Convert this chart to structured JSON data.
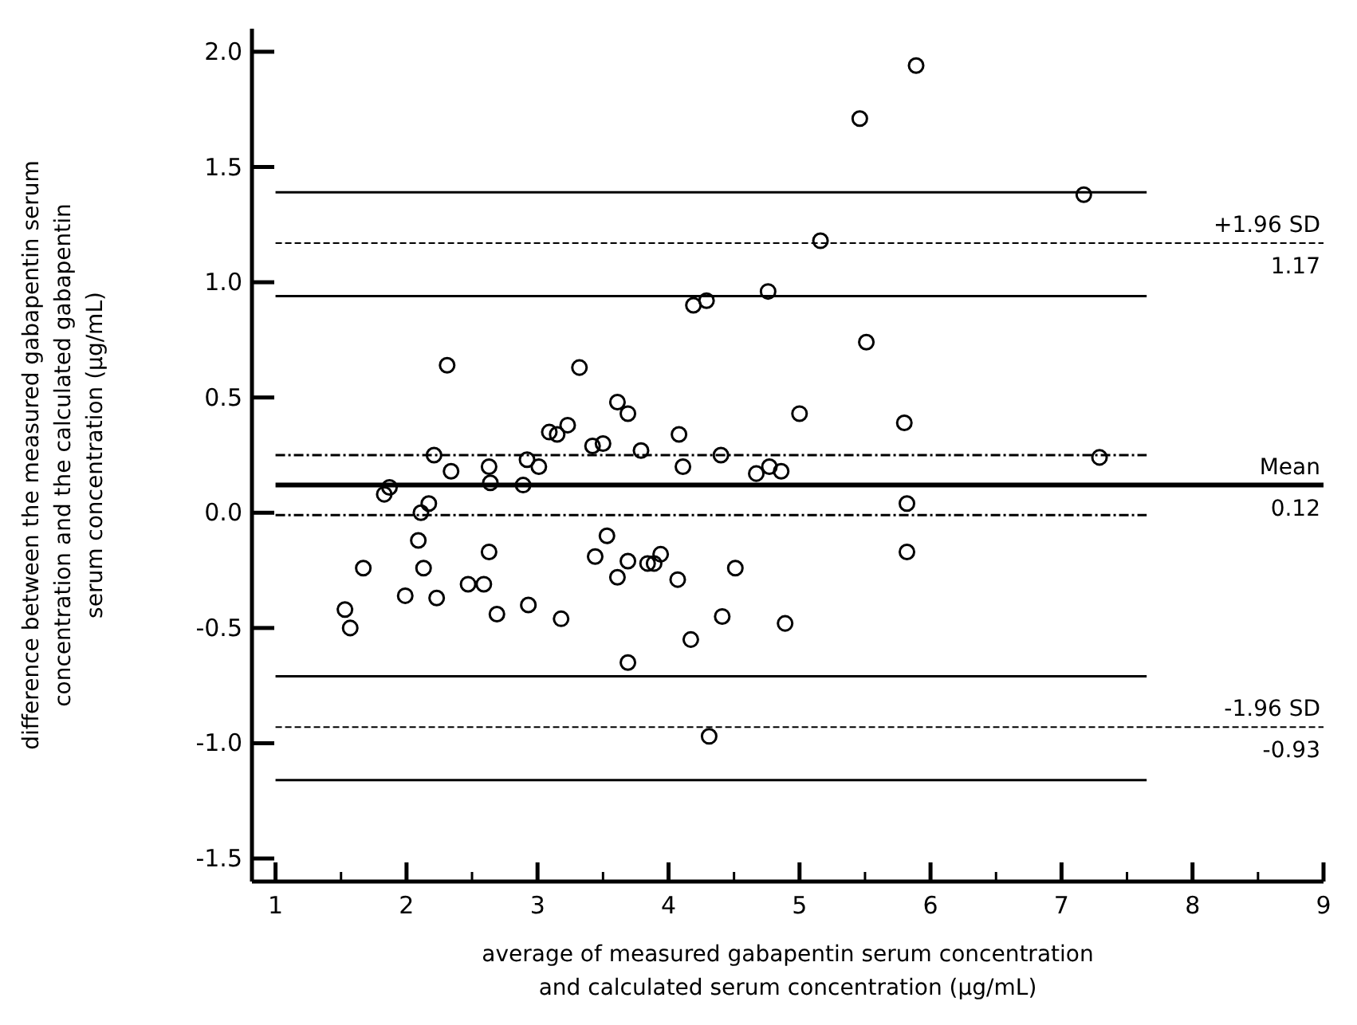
{
  "chart_data": {
    "type": "scatter",
    "xlabel": "average of measured gabapentin serum concentration\nand calculated serum concentration (µg/mL)",
    "ylabel": "difference between the measured gabapentin serum\nconcentration and the calculated gabapentin\nserum concentration (µg/mL)",
    "xlim": [
      0.82,
      9
    ],
    "ylim": [
      -1.6,
      2.1
    ],
    "xticks": [
      1,
      {
        "value": 1.5,
        "label": null
      },
      2,
      {
        "value": 2.5,
        "label": null
      },
      3,
      {
        "value": 3.5,
        "label": null
      },
      4,
      {
        "value": 4.5,
        "label": null
      },
      5,
      {
        "value": 5.5,
        "label": null
      },
      6,
      {
        "value": 6.5,
        "label": null
      },
      7,
      {
        "value": 7.5,
        "label": null
      },
      8,
      {
        "value": 8.5,
        "label": null
      },
      9
    ],
    "yticks": [
      {
        "value": -1.5,
        "label": "-1.5"
      },
      {
        "value": -1,
        "label": "-1.0"
      },
      {
        "value": -0.5,
        "label": "-0.5"
      },
      {
        "value": 0,
        "label": "0.0"
      },
      0.5,
      {
        "value": 1,
        "label": "1.0"
      },
      1.5,
      {
        "value": 2,
        "label": "2.0"
      }
    ],
    "grid": false,
    "marker": "circle",
    "annotations": [
      {
        "text": "1.17",
        "y": 1.17
      },
      {
        "text": "0.12",
        "y": 0.12
      },
      {
        "text": "-0.93",
        "y": -0.93
      }
    ],
    "ref_lines": [
      {
        "axis": "y",
        "value": 1.17,
        "label": "+1.96 SD",
        "line_style": "dashed",
        "color": "#000000"
      },
      {
        "axis": "y",
        "value": 0.12,
        "label": "Mean",
        "line_style": "solid",
        "color": "#000000"
      },
      {
        "axis": "y",
        "value": -0.93,
        "label": "-1.96 SD",
        "line_style": "dashed",
        "color": "#000000"
      }
    ],
    "series": [
      {
        "color": "#000000",
        "x": [
          2.31,
          3.32,
          4.19,
          4.29,
          3.61,
          3.69,
          3.09,
          3.15,
          3.23,
          3.42,
          3.5,
          3.79,
          4.08,
          4.11,
          4.4,
          4.67,
          2.21,
          2.34,
          2.63,
          2.64,
          2.89,
          2.92,
          3.01,
          1.87,
          1.83,
          2.17,
          2.11,
          1.53,
          1.57,
          1.67,
          2.09,
          2.13,
          1.99,
          2.23,
          2.47,
          2.59,
          2.63,
          2.69,
          2.93,
          3.18,
          3.44,
          3.53,
          3.61,
          3.69,
          3.69,
          3.84,
          3.89,
          3.94,
          4.07,
          4.17,
          4.31,
          4.41,
          4.51,
          5.0,
          5.8,
          4.77,
          4.86,
          7.29,
          5.82,
          5.82,
          4.89,
          5.89,
          5.46,
          7.17,
          5.16,
          4.76,
          5.51
        ],
        "values": [
          0.64,
          0.63,
          0.9,
          0.92,
          0.48,
          0.43,
          0.35,
          0.34,
          0.38,
          0.29,
          0.3,
          0.27,
          0.34,
          0.2,
          0.25,
          0.17,
          0.25,
          0.18,
          0.2,
          0.13,
          0.12,
          0.23,
          0.2,
          0.11,
          0.08,
          0.04,
          0.0,
          -0.42,
          -0.5,
          -0.24,
          -0.12,
          -0.24,
          -0.36,
          -0.37,
          -0.31,
          -0.31,
          -0.17,
          -0.44,
          -0.4,
          -0.46,
          -0.19,
          -0.1,
          -0.28,
          -0.21,
          -0.65,
          -0.22,
          -0.22,
          -0.18,
          -0.29,
          -0.55,
          -0.97,
          -0.45,
          -0.24,
          0.43,
          0.39,
          0.2,
          0.18,
          0.24,
          0.04,
          -0.17,
          -0.48,
          1.94,
          1.71,
          1.38,
          1.18,
          0.96,
          0.74
        ]
      },
      {
        "type": "line",
        "color": "#000000",
        "marker": "none",
        "line_style": "solid",
        "x": [
          1,
          7.65
        ],
        "values": [
          1.39,
          1.39
        ]
      },
      {
        "type": "line",
        "color": "#000000",
        "marker": "none",
        "line_style": "solid",
        "x": [
          1,
          7.65
        ],
        "values": [
          0.94,
          0.94
        ]
      },
      {
        "type": "line",
        "color": "#000000",
        "marker": "none",
        "line_style": "dotted",
        "x": [
          1,
          7.65
        ],
        "values": [
          0.25,
          0.25
        ]
      },
      {
        "type": "line",
        "color": "#000000",
        "marker": "none",
        "line_style": "dotted",
        "x": [
          1,
          7.65
        ],
        "values": [
          -0.01,
          -0.01
        ]
      },
      {
        "type": "line",
        "color": "#000000",
        "marker": "none",
        "line_style": "solid",
        "x": [
          1,
          7.65
        ],
        "values": [
          -0.71,
          -0.71
        ]
      },
      {
        "type": "line",
        "color": "#000000",
        "marker": "none",
        "line_style": "solid",
        "x": [
          1,
          7.65
        ],
        "values": [
          -1.16,
          -1.16
        ]
      }
    ]
  }
}
